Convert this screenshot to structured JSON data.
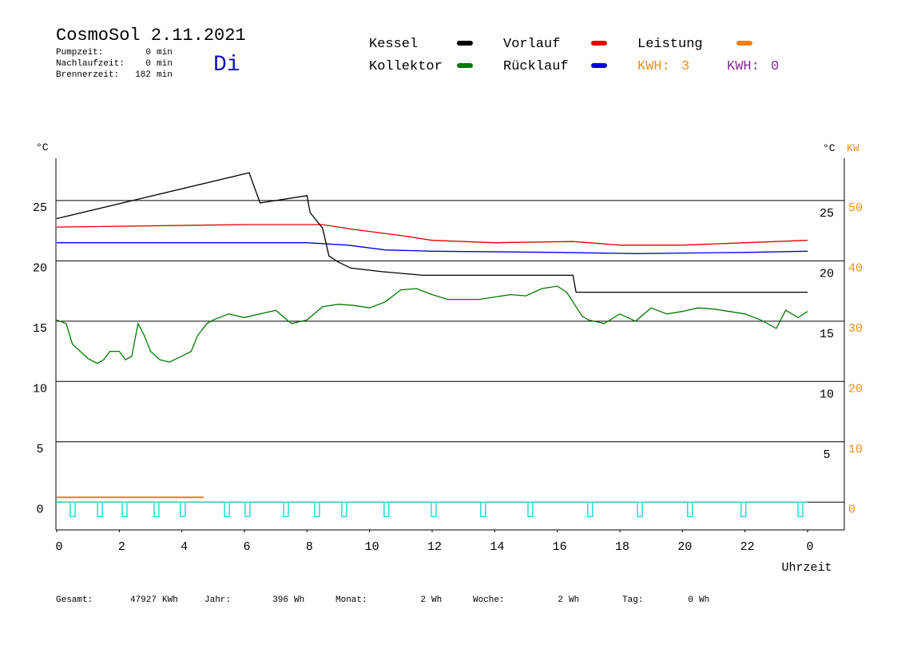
{
  "header": {
    "title": "CosmoSol 2.11.2021",
    "weekday": "Di",
    "stats": [
      {
        "label": "Pumpzeit:",
        "value": 0,
        "unit": "min"
      },
      {
        "label": "Nachlaufzeit:",
        "value": 0,
        "unit": "min"
      },
      {
        "label": "Brennerzeit:",
        "value": 182,
        "unit": "min"
      }
    ]
  },
  "chart_data": {
    "type": "line",
    "xlabel": "Uhrzeit",
    "ylabel": "°C",
    "yright_label": "°C",
    "y2label": "KW",
    "xlim": [
      0,
      24
    ],
    "xticks": [
      0,
      2,
      4,
      6,
      8,
      10,
      12,
      14,
      16,
      18,
      20,
      22,
      {
        "value": 24,
        "label": "0"
      }
    ],
    "ylim": [
      -2.3,
      28.5
    ],
    "yticks": [
      0,
      5,
      10,
      15,
      20,
      25
    ],
    "yticks_right": [
      5,
      10,
      15,
      20,
      25
    ],
    "y2lim": [
      -4.6,
      57
    ],
    "y2ticks": [
      0,
      10,
      20,
      30,
      40,
      50
    ],
    "grid": true,
    "series": [
      {
        "name": "Kessel",
        "color": "#000000",
        "x": [
          0,
          6.15,
          6.5,
          8,
          8.1,
          8.5,
          8.7,
          9,
          9.4,
          10.4,
          11.7,
          16.5,
          16.6,
          24
        ],
        "values": [
          23.5,
          27.3,
          24.8,
          25.4,
          24.0,
          22.7,
          20.4,
          19.9,
          19.4,
          19.1,
          18.8,
          18.8,
          17.4,
          17.4
        ]
      },
      {
        "name": "Vorlauf",
        "color": "#e00000",
        "x": [
          0,
          6,
          8.5,
          9.5,
          11,
          12,
          14,
          16.5,
          18,
          20,
          22,
          24
        ],
        "values": [
          22.8,
          23.0,
          23.0,
          22.6,
          22.1,
          21.7,
          21.5,
          21.6,
          21.3,
          21.3,
          21.5,
          21.7
        ]
      },
      {
        "name": "Leistung",
        "color": "#f08010",
        "axis": "y2",
        "x": [
          0,
          4.7
        ],
        "values": [
          0.8,
          0.8
        ]
      },
      {
        "name": "Kollektor",
        "color": "#007a00",
        "x": [
          0,
          0.3,
          0.5,
          1.0,
          1.3,
          1.5,
          1.7,
          2.0,
          2.2,
          2.4,
          2.6,
          2.8,
          3.0,
          3.3,
          3.6,
          4.0,
          4.3,
          4.5,
          4.8,
          5.0,
          5.5,
          6.0,
          6.5,
          7.0,
          7.5,
          8.0,
          8.5,
          9.0,
          9.5,
          10.0,
          10.5,
          11.0,
          11.5,
          12.0,
          12.5,
          13.0,
          13.5,
          14.0,
          14.5,
          15.0,
          15.5,
          16.0,
          16.3,
          16.8,
          17.0,
          17.5,
          18.0,
          18.5,
          19.0,
          19.5,
          20.0,
          20.5,
          21.0,
          21.5,
          22.0,
          22.5,
          23.0,
          23.3,
          23.7,
          24.0
        ],
        "values": [
          15.1,
          14.8,
          13.1,
          11.9,
          11.5,
          11.8,
          12.5,
          12.5,
          11.8,
          12.1,
          14.8,
          13.8,
          12.5,
          11.8,
          11.6,
          12.1,
          12.5,
          13.8,
          14.8,
          15.1,
          15.6,
          15.3,
          15.6,
          15.9,
          14.8,
          15.1,
          16.2,
          16.4,
          16.3,
          16.1,
          16.6,
          17.6,
          17.7,
          17.2,
          16.8,
          16.8,
          16.8,
          17.0,
          17.2,
          17.1,
          17.7,
          17.9,
          17.4,
          15.4,
          15.1,
          14.8,
          15.6,
          15.0,
          16.1,
          15.6,
          15.8,
          16.1,
          16.0,
          15.8,
          15.6,
          15.1,
          14.4,
          15.9,
          15.3,
          15.8
        ]
      },
      {
        "name": "Rücklauf",
        "color": "#0000e0",
        "x": [
          0,
          8,
          9.3,
          10.5,
          12,
          16,
          18.5,
          22,
          24
        ],
        "values": [
          21.5,
          21.5,
          21.3,
          20.9,
          20.8,
          20.7,
          20.6,
          20.7,
          20.8
        ]
      }
    ],
    "kwh": [
      {
        "label": "KWH:",
        "value": 3,
        "color": "#e89020"
      },
      {
        "label": "KWH:",
        "value": 0,
        "color": "#803090"
      }
    ],
    "pump": {
      "color": "#30d8d8",
      "x": [
        0.51,
        1.38,
        2.17,
        3.19,
        4.03,
        5.44,
        6.1,
        7.33,
        8.32,
        9.19,
        10.54,
        12.05,
        13.63,
        15.14,
        17.05,
        18.64,
        20.24,
        21.95,
        23.77
      ]
    }
  },
  "footer": [
    {
      "label": "Gesamt:",
      "value": 47927,
      "unit": "KWh"
    },
    {
      "label": "Jahr:",
      "value": 396,
      "unit": "Wh"
    },
    {
      "label": "Monat:",
      "value": 2,
      "unit": "Wh"
    },
    {
      "label": "Woche:",
      "value": 2,
      "unit": "Wh"
    },
    {
      "label": "Tag:",
      "value": 0,
      "unit": "Wh"
    }
  ]
}
